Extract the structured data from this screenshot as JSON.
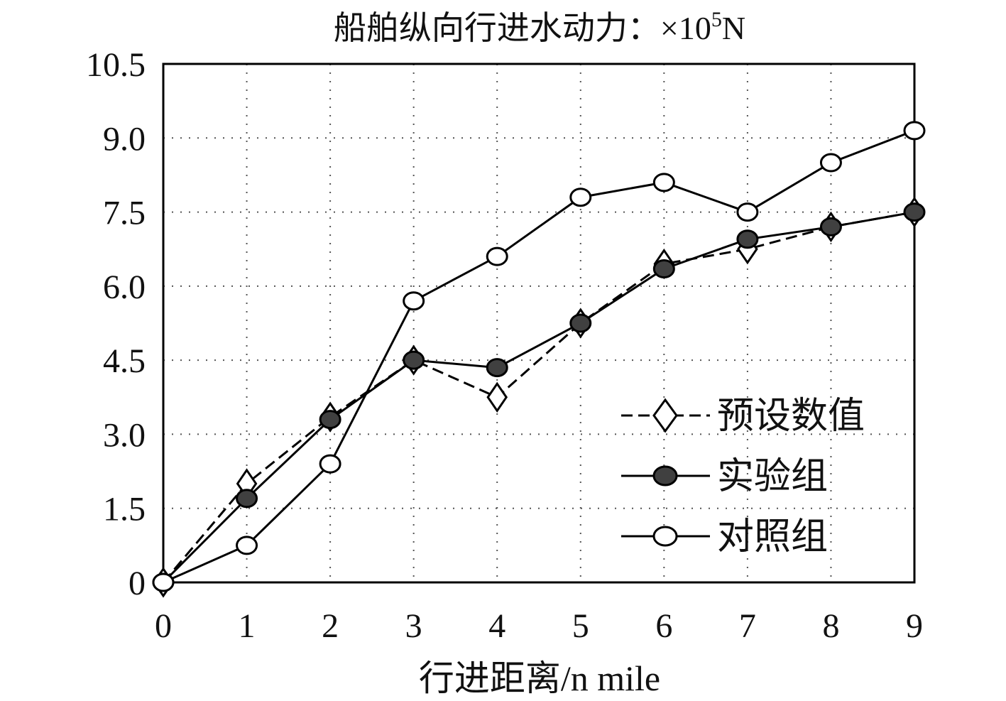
{
  "chart_data": {
    "type": "line",
    "ylabel": "船舶纵向行进水动力：×10",
    "ylabel_exponent": "5",
    "ylabel_unit": "N",
    "xlabel": "行进距离/n mile",
    "x": [
      0,
      1,
      2,
      3,
      4,
      5,
      6,
      7,
      8,
      9
    ],
    "xticks": [
      "0",
      "1",
      "2",
      "3",
      "4",
      "5",
      "6",
      "7",
      "8",
      "9"
    ],
    "yticks": [
      "0",
      "1.5",
      "3.0",
      "4.5",
      "6.0",
      "7.5",
      "9.0",
      "10.5"
    ],
    "ytick_values": [
      0,
      1.5,
      3.0,
      4.5,
      6.0,
      7.5,
      9.0,
      10.5
    ],
    "xlim": [
      0,
      9
    ],
    "ylim": [
      0,
      10.5
    ],
    "grid": true,
    "legend_position": "lower-right",
    "series": [
      {
        "name": "预设数值",
        "marker": "diamond",
        "line": "dashed",
        "fill": "#ffffff",
        "values": [
          0,
          2.0,
          3.35,
          4.5,
          3.75,
          5.25,
          6.45,
          6.75,
          7.2,
          7.5
        ]
      },
      {
        "name": "实验组",
        "marker": "circle",
        "line": "solid",
        "fill": "#404040",
        "values": [
          0,
          1.7,
          3.3,
          4.5,
          4.35,
          5.25,
          6.35,
          6.95,
          7.2,
          7.5
        ]
      },
      {
        "name": "对照组",
        "marker": "circle",
        "line": "solid",
        "fill": "#ffffff",
        "values": [
          0,
          0.75,
          2.4,
          5.7,
          6.6,
          7.8,
          8.1,
          7.5,
          8.5,
          9.15
        ]
      }
    ]
  }
}
